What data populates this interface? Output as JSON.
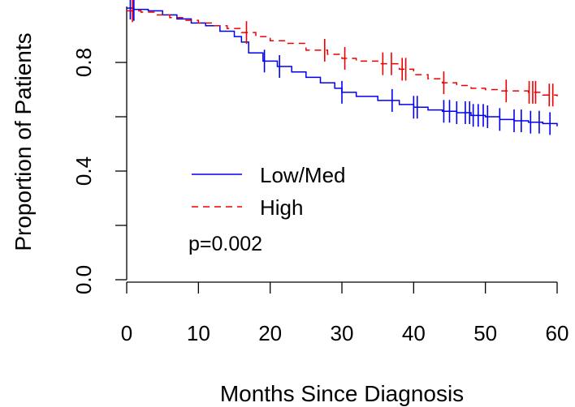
{
  "chart_data": {
    "type": "line",
    "title": "",
    "xlabel": "Months Since Diagnosis",
    "ylabel": "Proportion of Patients",
    "xlim": [
      0,
      60
    ],
    "ylim": [
      0,
      1
    ],
    "x_ticks": [
      0,
      10,
      20,
      30,
      40,
      50,
      60
    ],
    "x_tick_labels": [
      "0",
      "10",
      "20",
      "30",
      "40",
      "50",
      "60"
    ],
    "y_ticks": [
      0.0,
      0.2,
      0.4,
      0.6,
      0.8
    ],
    "y_tick_labels": [
      "0.0",
      "",
      "0.4",
      "",
      "0.8"
    ],
    "grid": false,
    "legend_position": "center-left",
    "annotation": "p=0.002",
    "series": [
      {
        "name": "Low/Med",
        "color": "#0000ee",
        "line_style": "solid",
        "x": [
          0,
          1,
          3,
          5,
          7,
          9,
          11,
          13,
          15,
          16,
          17,
          19,
          21,
          23,
          25,
          27,
          29,
          30,
          32,
          35,
          38,
          40,
          42,
          44,
          46,
          48,
          50,
          52,
          54,
          56,
          58,
          60
        ],
        "y": [
          1.0,
          0.995,
          0.99,
          0.975,
          0.96,
          0.945,
          0.935,
          0.915,
          0.895,
          0.875,
          0.835,
          0.805,
          0.785,
          0.765,
          0.745,
          0.725,
          0.705,
          0.69,
          0.675,
          0.66,
          0.645,
          0.635,
          0.625,
          0.62,
          0.615,
          0.605,
          0.6,
          0.59,
          0.585,
          0.58,
          0.575,
          0.565
        ],
        "censor_x": [
          0.5,
          1,
          19.2,
          21.3,
          30,
          37,
          40,
          40.5,
          44.2,
          45,
          46,
          47.2,
          47.8,
          48.3,
          49,
          49.7,
          50.3,
          52,
          54,
          55,
          56.3,
          57.5,
          59
        ]
      },
      {
        "name": "High",
        "color": "#ee0000",
        "line_style": "dashed",
        "x": [
          0,
          2,
          4,
          6,
          8,
          10,
          12,
          14,
          16,
          18,
          20,
          22,
          25,
          28,
          30,
          32,
          35,
          38,
          40,
          42,
          44,
          46,
          48,
          50,
          52,
          54,
          56,
          58,
          60
        ],
        "y": [
          0.99,
          0.985,
          0.975,
          0.965,
          0.955,
          0.945,
          0.935,
          0.925,
          0.91,
          0.895,
          0.88,
          0.87,
          0.845,
          0.83,
          0.815,
          0.805,
          0.795,
          0.775,
          0.755,
          0.74,
          0.725,
          0.715,
          0.705,
          0.7,
          0.695,
          0.695,
          0.69,
          0.68,
          0.675
        ],
        "censor_x": [
          0.8,
          16.7,
          27.6,
          30.4,
          35.7,
          36.9,
          38.4,
          38.9,
          44.2,
          52.9,
          56.1,
          56.6,
          57,
          58.9,
          59.4
        ]
      }
    ]
  }
}
